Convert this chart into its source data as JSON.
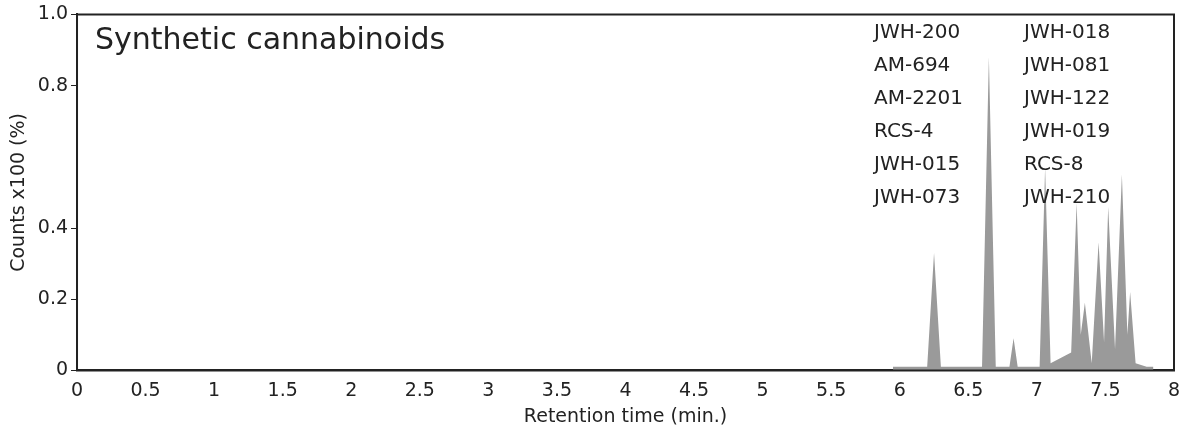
{
  "chart_data": {
    "type": "area",
    "title": "Synthetic cannabinoids",
    "xlabel": "Retention time (min.)",
    "ylabel": "Counts x100 (%)",
    "annotations": [
      "JWH-200",
      "AM-694",
      "AM-2201",
      "RCS-4",
      "JWH-015",
      "JWH-073",
      "JWH-018",
      "JWH-081",
      "JWH-122",
      "JWH-019",
      "RCS-8",
      "JWH-210"
    ],
    "x": [
      5.95,
      6.2,
      6.25,
      6.3,
      6.6,
      6.65,
      6.7,
      6.8,
      6.83,
      6.86,
      7.02,
      7.06,
      7.1,
      7.25,
      7.29,
      7.32,
      7.35,
      7.4,
      7.45,
      7.49,
      7.52,
      7.57,
      7.62,
      7.66,
      7.68,
      7.72,
      7.8,
      7.85
    ],
    "series": [
      {
        "color": "#9a9a9a",
        "values": [
          0.01,
          0.01,
          0.33,
          0.01,
          0.01,
          0.88,
          0.01,
          0.01,
          0.09,
          0.01,
          0.01,
          0.57,
          0.02,
          0.05,
          0.47,
          0.1,
          0.19,
          0.02,
          0.36,
          0.08,
          0.46,
          0.06,
          0.55,
          0.1,
          0.22,
          0.02,
          0.01,
          0.01
        ]
      }
    ],
    "xlim": [
      0,
      8
    ],
    "xticks": [
      0,
      0.5,
      1,
      1.5,
      2,
      2.5,
      3,
      3.5,
      4,
      4.5,
      5,
      5.5,
      6,
      6.5,
      7,
      7.5,
      8
    ],
    "ylim": [
      0,
      1
    ],
    "yticks": [
      0,
      0.2,
      0.4,
      0.8,
      {
        "value": 1,
        "label": "1.0"
      }
    ],
    "grid": false,
    "legend": false
  }
}
